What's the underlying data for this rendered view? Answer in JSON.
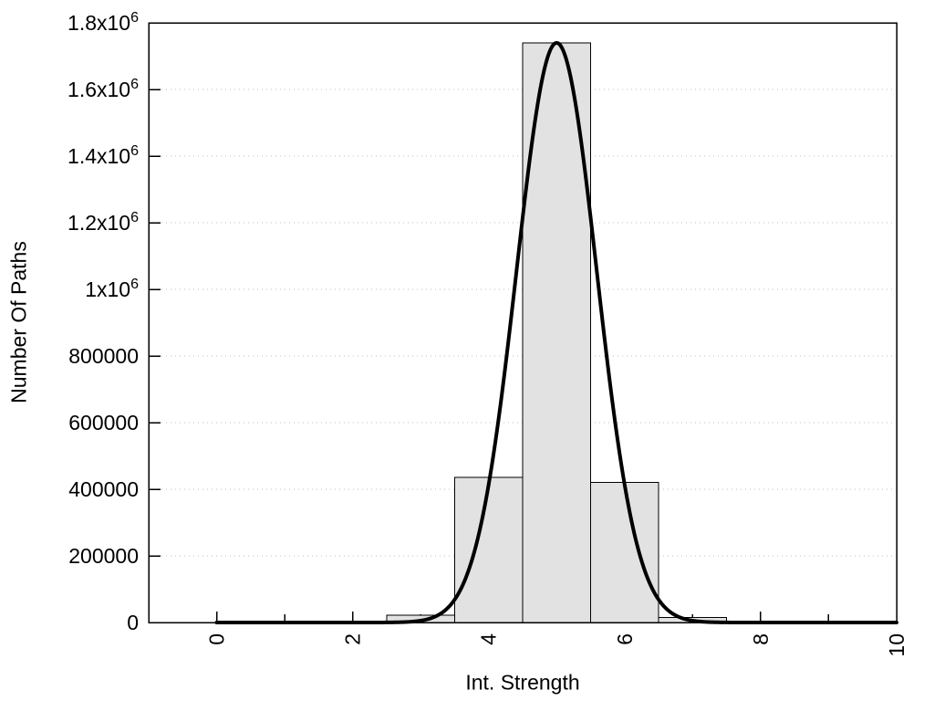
{
  "chart_data": {
    "type": "bar",
    "subtype": "histogram-with-gaussian-fit",
    "title": "",
    "xlabel": "Int. Strength",
    "ylabel": "Number Of Paths",
    "xlim": [
      -1,
      10
    ],
    "ylim": [
      0,
      1800000
    ],
    "grid": "horizontal-dotted",
    "legend": "none",
    "x_major_ticks": [
      0,
      2,
      4,
      6,
      8,
      10
    ],
    "x_major_labels": [
      "0",
      "2",
      "4",
      "6",
      "8",
      "10"
    ],
    "x_minor_ticks": [
      1,
      3,
      5,
      7,
      9
    ],
    "y_ticks": [
      0,
      200000,
      400000,
      600000,
      800000,
      1000000,
      1200000,
      1400000,
      1600000,
      1800000
    ],
    "y_tick_labels": [
      "0",
      "200000",
      "400000",
      "600000",
      "800000",
      "1x10^6",
      "1.2x10^6",
      "1.4x10^6",
      "1.6x10^6",
      "1.8x10^6"
    ],
    "histogram": {
      "bin_width": 1,
      "bin_centers": [
        3,
        4,
        5,
        6,
        7
      ],
      "counts": [
        22000,
        435000,
        1740000,
        420000,
        15000
      ]
    },
    "fit_curve": {
      "shape": "gaussian",
      "amplitude": 1740000,
      "mean": 5.0,
      "sigma": 0.59,
      "x_start": 0,
      "x_end": 10
    },
    "colors": {
      "background": "#ffffff",
      "bar_fill": "#e2e2e2",
      "bar_border": "#000000",
      "curve": "#000000",
      "grid": "#bdbdbd",
      "axis": "#000000",
      "text": "#000000"
    }
  }
}
